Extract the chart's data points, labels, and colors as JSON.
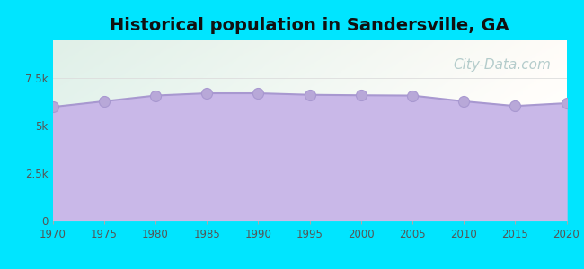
{
  "title": "Historical population in Sandersville, GA",
  "title_fontsize": 14,
  "title_fontweight": "bold",
  "background_color": "#00e5ff",
  "years": [
    1970,
    1975,
    1980,
    1985,
    1990,
    1995,
    2000,
    2005,
    2010,
    2015,
    2020
  ],
  "population": [
    5990,
    6290,
    6590,
    6710,
    6710,
    6630,
    6605,
    6590,
    6290,
    6040,
    6190
  ],
  "fill_color": "#c9b8e8",
  "fill_alpha": 1.0,
  "line_color": "#a898d0",
  "line_width": 1.5,
  "marker_color": "#b8a8d8",
  "marker_size": 5,
  "xlim": [
    1970,
    2020
  ],
  "ylim": [
    0,
    9500
  ],
  "yticks": [
    0,
    2500,
    5000,
    7500
  ],
  "ytick_labels": [
    "0",
    "2.5k",
    "5k",
    "7.5k"
  ],
  "xticks": [
    1970,
    1975,
    1980,
    1985,
    1990,
    1995,
    2000,
    2005,
    2010,
    2015,
    2020
  ],
  "tick_color": "#555555",
  "tick_fontsize": 8.5,
  "grid_color": "#dddddd",
  "watermark_text": "City-Data.com",
  "watermark_color": "#a8c4c4",
  "watermark_fontsize": 11,
  "plot_bg_color_tl": "#e0f0e8",
  "plot_bg_color_tr": "#f5fff8",
  "plot_bg_color_bl": "#f0f8f0",
  "plot_bg_color_br": "#ffffff"
}
